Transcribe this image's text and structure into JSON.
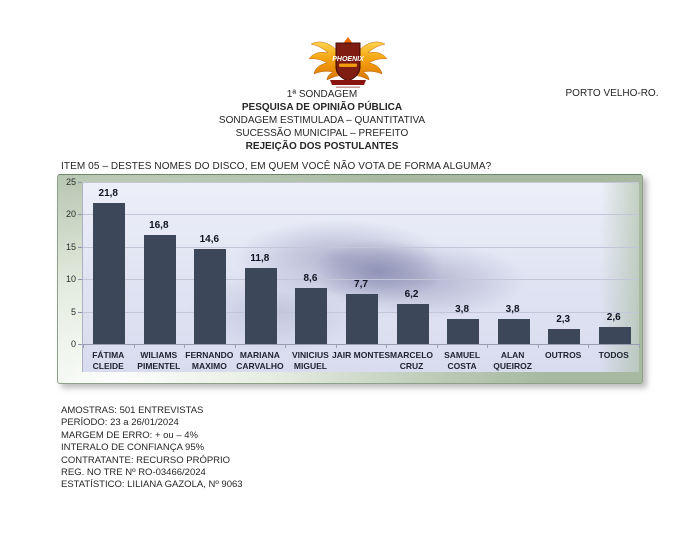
{
  "header": {
    "sondagem": "1ª SONDAGEM",
    "title": "PESQUISA DE OPINIÃO PÚBLICA",
    "subtitle1": "SONDAGEM ESTIMULADA – QUANTITATIVA",
    "subtitle2": "SUCESSÃO MUNICIPAL – PREFEITO",
    "subject": "REJEIÇÃO DOS POSTULANTES",
    "location": "PORTO VELHO-RO.",
    "logo_text": "PHOENIX"
  },
  "question": "ITEM 05 – DESTES NOMES DO DISCO, EM QUEM VOCÊ NÃO VOTA DE FORMA ALGUMA?",
  "chart_data": {
    "type": "bar",
    "title": "",
    "xlabel": "",
    "ylabel": "",
    "categories": [
      "FÁTIMA CLEIDE",
      "WILIAMS PIMENTEL",
      "FERNANDO MAXIMO",
      "MARIANA CARVALHO",
      "VINICIUS MIGUEL",
      "JAIR MONTES",
      "MARCELO CRUZ",
      "SAMUEL COSTA",
      "ALAN QUEIROZ",
      "OUTROS",
      "TODOS"
    ],
    "category_lines": [
      [
        "FÁTIMA",
        "CLEIDE"
      ],
      [
        "WILIAMS",
        "PIMENTEL"
      ],
      [
        "FERNANDO",
        "MAXIMO"
      ],
      [
        "MARIANA",
        "CARVALHO"
      ],
      [
        "VINICIUS",
        "MIGUEL"
      ],
      [
        "JAIR MONTES"
      ],
      [
        "MARCELO",
        "CRUZ"
      ],
      [
        "SAMUEL",
        "COSTA"
      ],
      [
        "ALAN",
        "QUEIROZ"
      ],
      [
        "OUTROS"
      ],
      [
        "TODOS"
      ]
    ],
    "values": [
      21.8,
      16.8,
      14.6,
      11.8,
      8.6,
      7.7,
      6.2,
      3.8,
      3.8,
      2.3,
      2.6
    ],
    "value_labels": [
      "21,8",
      "16,8",
      "14,6",
      "11,8",
      "8,6",
      "7,7",
      "6,2",
      "3,8",
      "3,8",
      "2,3",
      "2,6"
    ],
    "ylim": [
      0,
      25
    ],
    "yticks": [
      0,
      5,
      10,
      15,
      20,
      25
    ],
    "grid": true,
    "legend": false,
    "bar_color": "#3c4859",
    "plot_bg": "#dfe3f2",
    "frame_color": "#b7c6b2"
  },
  "footer": {
    "lines": [
      "AMOSTRAS: 501 ENTREVISTAS",
      "PERÍODO: 23 a 26/01/2024",
      "MARGEM DE ERRO: + ou – 4%",
      "INTERALO DE CONFIANÇA 95%",
      "CONTRATANTE: RECURSO PRÓPRIO",
      "REG. NO TRE Nº RO-03466/2024",
      "ESTATÍSTICO: LILIANA GAZOLA, Nº 9063"
    ]
  }
}
